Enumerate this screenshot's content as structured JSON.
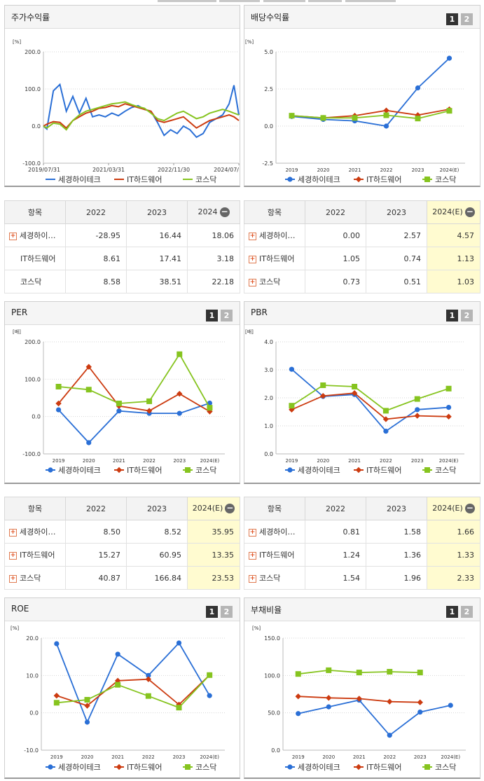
{
  "controls": {
    "btn1": "1",
    "btn2": "2",
    "minus": "−",
    "plus": "+"
  },
  "colors": {
    "s1": "#2a6fd6",
    "s2": "#cc3b10",
    "s3": "#86c41f"
  },
  "panels": {
    "stock": {
      "title": "주가수익률",
      "unit": "[%]",
      "yticks": [
        "200.0",
        "100.0",
        "0.0",
        "-100.0"
      ],
      "xticks": [
        "2019/07/31",
        "2021/03/31",
        "2022/11/30",
        "2024/07/"
      ],
      "legend": [
        "세경하이테크",
        "IT하드웨어",
        "코스닥"
      ]
    },
    "div": {
      "title": "배당수익률",
      "unit": "[%]",
      "yticks": [
        "5.0",
        "2.5",
        "0.0",
        "-2.5"
      ],
      "xticks": [
        "2019",
        "2020",
        "2021",
        "2022",
        "2023",
        "2024(E)"
      ],
      "legend": [
        "세경하이테크",
        "IT하드웨어",
        "코스닥"
      ]
    },
    "per": {
      "title": "PER",
      "unit": "[배]",
      "yticks": [
        "200.0",
        "100.0",
        "0.0",
        "-100.0"
      ],
      "xticks": [
        "2019",
        "2020",
        "2021",
        "2022",
        "2023",
        "2024(E)"
      ],
      "legend": [
        "세경하이테크",
        "IT하드웨어",
        "코스닥"
      ]
    },
    "pbr": {
      "title": "PBR",
      "unit": "[배]",
      "yticks": [
        "4.0",
        "3.0",
        "2.0",
        "1.0",
        "0.0"
      ],
      "xticks": [
        "2019",
        "2020",
        "2021",
        "2022",
        "2023",
        "2024(E)"
      ],
      "legend": [
        "세경하이테크",
        "IT하드웨어",
        "코스닥"
      ]
    },
    "roe": {
      "title": "ROE",
      "unit": "[%]",
      "yticks": [
        "20.0",
        "10.0",
        "0.0",
        "-10.0"
      ],
      "xticks": [
        "2019",
        "2020",
        "2021",
        "2022",
        "2023",
        "2024(E)"
      ],
      "legend": [
        "세경하이테크",
        "IT하드웨어",
        "코스닥"
      ]
    },
    "debt": {
      "title": "부채비율",
      "unit": "[%]",
      "yticks": [
        "150.0",
        "100.0",
        "50.0",
        "0.0"
      ],
      "xticks": [
        "2019",
        "2020",
        "2021",
        "2022",
        "2023",
        "2024(E)"
      ],
      "legend": [
        "세경하이테크",
        "IT하드웨어",
        "코스닥"
      ]
    }
  },
  "tables": {
    "stock": {
      "head": [
        "항목",
        "2022",
        "2023",
        "2024"
      ],
      "rows": [
        {
          "name": "세경하이…",
          "vals": [
            "-28.95",
            "16.44",
            "18.06"
          ]
        },
        {
          "name": "IT하드웨어",
          "vals": [
            "8.61",
            "17.41",
            "3.18"
          ]
        },
        {
          "name": "코스닥",
          "vals": [
            "8.58",
            "38.51",
            "22.18"
          ]
        }
      ]
    },
    "div": {
      "head": [
        "항목",
        "2022",
        "2023",
        "2024(E)"
      ],
      "rows": [
        {
          "name": "세경하이…",
          "vals": [
            "0.00",
            "2.57",
            "4.57"
          ]
        },
        {
          "name": "IT하드웨어",
          "vals": [
            "1.05",
            "0.74",
            "1.13"
          ]
        },
        {
          "name": "코스닥",
          "vals": [
            "0.73",
            "0.51",
            "1.03"
          ]
        }
      ]
    },
    "per": {
      "head": [
        "항목",
        "2022",
        "2023",
        "2024(E)"
      ],
      "rows": [
        {
          "name": "세경하이…",
          "vals": [
            "8.50",
            "8.52",
            "35.95"
          ]
        },
        {
          "name": "IT하드웨어",
          "vals": [
            "15.27",
            "60.95",
            "13.35"
          ]
        },
        {
          "name": "코스닥",
          "vals": [
            "40.87",
            "166.84",
            "23.53"
          ]
        }
      ]
    },
    "pbr": {
      "head": [
        "항목",
        "2022",
        "2023",
        "2024(E)"
      ],
      "rows": [
        {
          "name": "세경하이…",
          "vals": [
            "0.81",
            "1.58",
            "1.66"
          ]
        },
        {
          "name": "IT하드웨어",
          "vals": [
            "1.24",
            "1.36",
            "1.33"
          ]
        },
        {
          "name": "코스닥",
          "vals": [
            "1.54",
            "1.96",
            "2.33"
          ]
        }
      ]
    }
  },
  "chart_data": [
    {
      "id": "stock",
      "type": "line",
      "title": "주가수익률",
      "ylabel": "[%]",
      "ylim": [
        -100,
        200
      ],
      "xlim": [
        "2019/07/31",
        "2024/07/31"
      ],
      "x_ticks": [
        "2019/07/31",
        "2021/03/31",
        "2022/11/30",
        "2024/07/"
      ],
      "x": [
        "2019/07/31",
        "2019/09/01",
        "2019/11/01",
        "2020/01/01",
        "2020/03/01",
        "2020/05/01",
        "2020/07/01",
        "2020/09/01",
        "2020/11/01",
        "2021/01/01",
        "2021/03/01",
        "2021/05/01",
        "2021/07/01",
        "2021/09/01",
        "2021/11/01",
        "2022/01/01",
        "2022/03/01",
        "2022/05/01",
        "2022/07/01",
        "2022/09/01",
        "2022/11/01",
        "2023/01/01",
        "2023/03/01",
        "2023/05/01",
        "2023/07/01",
        "2023/09/01",
        "2023/11/01",
        "2024/01/01",
        "2024/03/01",
        "2024/05/01",
        "2024/06/15",
        "2024/07/31"
      ],
      "series": [
        {
          "name": "세경하이테크",
          "values": [
            0,
            -8,
            95,
            112,
            40,
            80,
            35,
            75,
            25,
            30,
            25,
            35,
            28,
            40,
            50,
            55,
            45,
            40,
            10,
            -25,
            -10,
            -20,
            0,
            -10,
            -30,
            -20,
            10,
            20,
            30,
            60,
            110,
            30
          ]
        },
        {
          "name": "IT하드웨어",
          "values": [
            0,
            5,
            12,
            10,
            -5,
            15,
            25,
            35,
            40,
            48,
            50,
            55,
            52,
            60,
            55,
            50,
            45,
            40,
            15,
            10,
            15,
            20,
            25,
            10,
            -5,
            5,
            15,
            20,
            25,
            30,
            25,
            15
          ]
        },
        {
          "name": "코스닥",
          "values": [
            0,
            -5,
            8,
            5,
            -10,
            15,
            30,
            40,
            45,
            50,
            55,
            60,
            62,
            65,
            58,
            52,
            48,
            35,
            20,
            15,
            25,
            35,
            40,
            30,
            20,
            25,
            35,
            40,
            45,
            40,
            35,
            30
          ]
        }
      ]
    },
    {
      "id": "div",
      "type": "line",
      "title": "배당수익률",
      "ylabel": "[%]",
      "ylim": [
        -2.5,
        5
      ],
      "x": [
        "2019",
        "2020",
        "2021",
        "2022",
        "2023",
        "2024(E)"
      ],
      "series": [
        {
          "name": "세경하이테크",
          "values": [
            0.65,
            0.45,
            0.35,
            0.0,
            2.57,
            4.57
          ]
        },
        {
          "name": "IT하드웨어",
          "values": [
            0.7,
            0.55,
            0.7,
            1.05,
            0.74,
            1.13
          ]
        },
        {
          "name": "코스닥",
          "values": [
            0.7,
            0.55,
            0.55,
            0.73,
            0.51,
            1.03
          ]
        }
      ]
    },
    {
      "id": "per",
      "type": "line",
      "title": "PER",
      "ylabel": "[배]",
      "ylim": [
        -100,
        200
      ],
      "x": [
        "2019",
        "2020",
        "2021",
        "2022",
        "2023",
        "2024(E)"
      ],
      "series": [
        {
          "name": "세경하이테크",
          "values": [
            18,
            -70,
            15,
            8.5,
            8.52,
            35.95
          ]
        },
        {
          "name": "IT하드웨어",
          "values": [
            35,
            133,
            28,
            15.27,
            60.95,
            13.35
          ]
        },
        {
          "name": "코스닥",
          "values": [
            80,
            72,
            35,
            40.87,
            166.84,
            23.53
          ]
        }
      ]
    },
    {
      "id": "pbr",
      "type": "line",
      "title": "PBR",
      "ylabel": "[배]",
      "ylim": [
        0,
        4
      ],
      "x": [
        "2019",
        "2020",
        "2021",
        "2022",
        "2023",
        "2024(E)"
      ],
      "series": [
        {
          "name": "세경하이테크",
          "values": [
            3.02,
            2.05,
            2.12,
            0.81,
            1.58,
            1.66
          ]
        },
        {
          "name": "IT하드웨어",
          "values": [
            1.58,
            2.07,
            2.17,
            1.24,
            1.36,
            1.33
          ]
        },
        {
          "name": "코스닥",
          "values": [
            1.72,
            2.45,
            2.4,
            1.54,
            1.96,
            2.33
          ]
        }
      ]
    },
    {
      "id": "roe",
      "type": "line",
      "title": "ROE",
      "ylabel": "[%]",
      "ylim": [
        -10,
        20
      ],
      "x": [
        "2019",
        "2020",
        "2021",
        "2022",
        "2023",
        "2024(E)"
      ],
      "series": [
        {
          "name": "세경하이테크",
          "values": [
            18.5,
            -2.5,
            15.7,
            10.0,
            18.7,
            4.6
          ]
        },
        {
          "name": "IT하드웨어",
          "values": [
            4.6,
            1.9,
            8.6,
            9.0,
            2.2,
            10.1
          ]
        },
        {
          "name": "코스닥",
          "values": [
            2.7,
            3.5,
            7.5,
            4.5,
            1.4,
            10.1
          ]
        }
      ]
    },
    {
      "id": "debt",
      "type": "line",
      "title": "부채비율",
      "ylabel": "[%]",
      "ylim": [
        0,
        150
      ],
      "x": [
        "2019",
        "2020",
        "2021",
        "2022",
        "2023",
        "2024(E)"
      ],
      "series": [
        {
          "name": "세경하이테크",
          "values": [
            49,
            58,
            67,
            20,
            51,
            60
          ]
        },
        {
          "name": "IT하드웨어",
          "values": [
            72,
            70,
            69,
            65,
            64,
            null
          ]
        },
        {
          "name": "코스닥",
          "values": [
            102,
            107,
            104,
            105,
            104,
            null
          ]
        }
      ]
    }
  ]
}
